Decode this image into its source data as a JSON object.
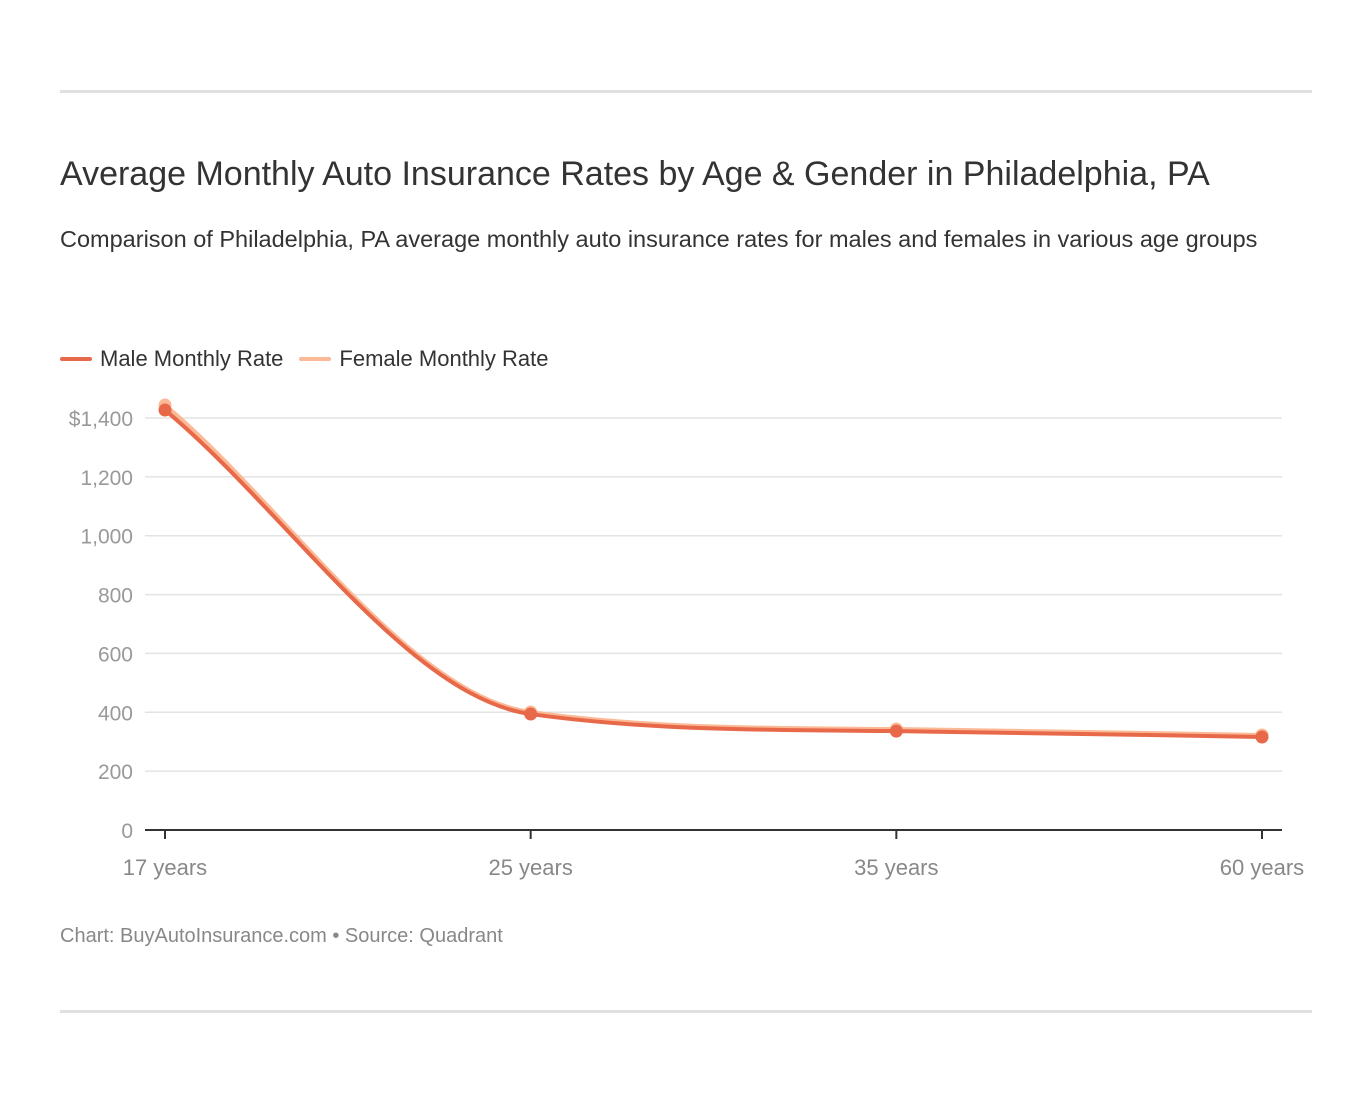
{
  "chart_data": {
    "type": "line",
    "title": "Average Monthly Auto Insurance Rates by Age & Gender in Philadelphia, PA",
    "subtitle": "Comparison of Philadelphia, PA average monthly auto insurance rates for males and females in various age groups",
    "categories": [
      "17 years",
      "25 years",
      "35 years",
      "60 years"
    ],
    "series": [
      {
        "name": "Male Monthly Rate",
        "color": "#e8694a",
        "values": [
          1427,
          394,
          336,
          316
        ]
      },
      {
        "name": "Female Monthly Rate",
        "color": "#fbb995",
        "values": [
          1444,
          401,
          343,
          323
        ]
      }
    ],
    "ylim": [
      0,
      1400
    ],
    "yticks": [
      0,
      200,
      400,
      600,
      800,
      1000,
      1200,
      1400
    ],
    "ytick_labels": [
      "0",
      "200",
      "400",
      "600",
      "800",
      "1,000",
      "1,200",
      "$1,400"
    ],
    "grid": true,
    "legend": "top-left",
    "curve": "smooth",
    "footer": "Chart: BuyAutoInsurance.com • Source: Quadrant"
  }
}
